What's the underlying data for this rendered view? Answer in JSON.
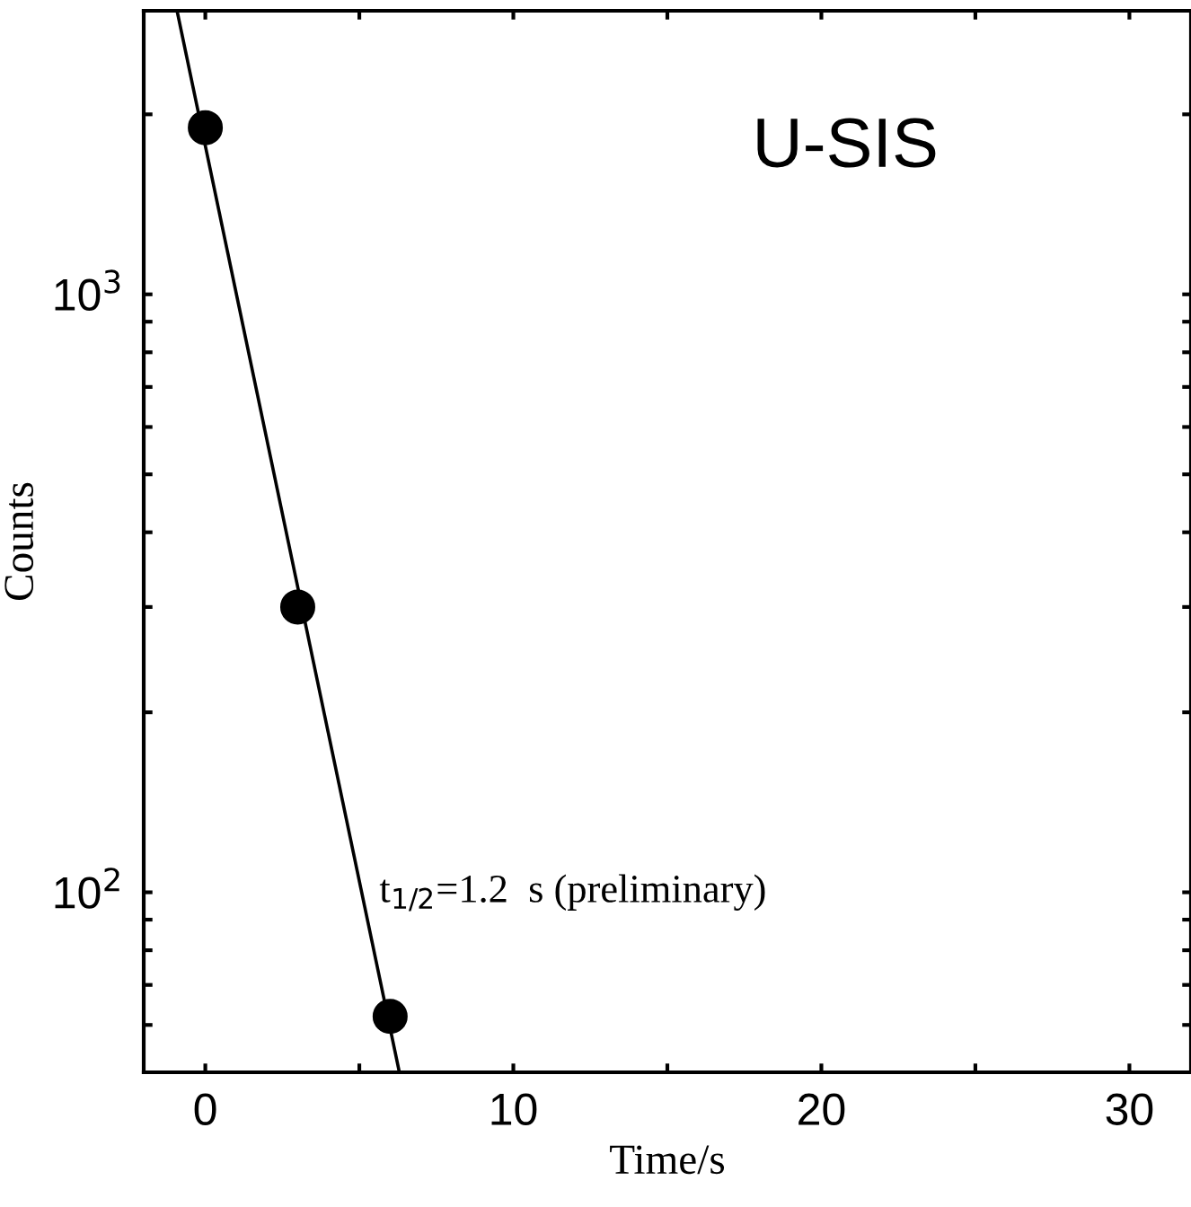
{
  "chart_data": {
    "type": "scatter",
    "xlabel": "Time/s",
    "ylabel": "Counts",
    "log": "y",
    "marker": "circle",
    "series": [
      {
        "x": [
          0,
          3,
          6
        ],
        "values": [
          1900,
          300,
          62
        ],
        "color": "#000000"
      },
      {
        "type": "line",
        "x": [
          -0.9,
          6.3
        ],
        "values": [
          2950,
          50
        ],
        "color": "#000000",
        "marker": "none"
      }
    ],
    "xlim": [
      -2,
      32
    ],
    "ylim": [
      50,
      2980
    ],
    "xticks": [
      0,
      {
        "value": 5,
        "label": null
      },
      10,
      {
        "value": 15,
        "label": null
      },
      20,
      {
        "value": 25,
        "label": null
      },
      30
    ],
    "yticks": [
      {
        "value": 60,
        "label": null
      },
      {
        "value": 70,
        "label": null
      },
      {
        "value": 80,
        "label": null
      },
      {
        "value": 90,
        "label": null
      },
      {
        "value": 100,
        "label": "10$^{2}$"
      },
      {
        "value": 200,
        "label": null
      },
      {
        "value": 300,
        "label": null
      },
      {
        "value": 400,
        "label": null
      },
      {
        "value": 500,
        "label": null
      },
      {
        "value": 600,
        "label": null
      },
      {
        "value": 700,
        "label": null
      },
      {
        "value": 800,
        "label": null
      },
      {
        "value": 900,
        "label": null
      },
      {
        "value": 1000,
        "label": "10$^{3}$"
      },
      {
        "value": 2000,
        "label": null
      }
    ],
    "annotations": [
      "U-SIS",
      "t$_{1/2}$=1.2  s (preliminary)"
    ],
    "grid": false,
    "legend": false
  }
}
